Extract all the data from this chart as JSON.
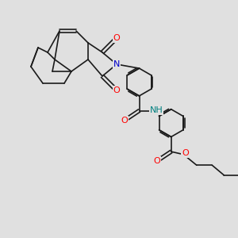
{
  "bg_color": "#e0e0e0",
  "bond_color": "#1a1a1a",
  "bond_width": 1.2,
  "atom_colors": {
    "O": "#ff0000",
    "N": "#0000cc",
    "NH": "#008080",
    "C": "#1a1a1a"
  },
  "fig_width": 3.0,
  "fig_height": 3.0,
  "dpi": 100
}
